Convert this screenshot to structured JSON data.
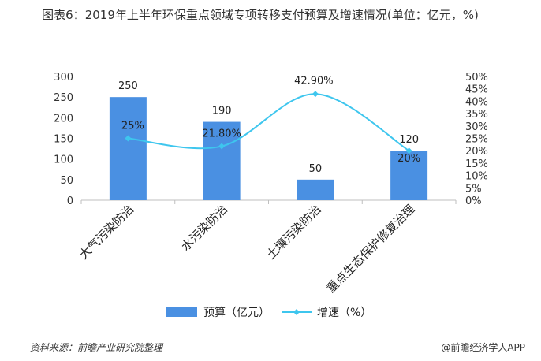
{
  "title": "图表6：2019年上半年环保重点领域专项转移支付预算及增速情况(单位：亿元，%)",
  "source": "资料来源：前瞻产业研究院整理",
  "brand": "@前瞻经济学人APP",
  "chart_data": {
    "type": "bar",
    "categories": [
      "大气污染防治",
      "水污染防治",
      "土壤污染防治",
      "重点生态保护修复治理"
    ],
    "series": [
      {
        "name": "预算（亿元）",
        "type": "bar",
        "axis": "left",
        "values": [
          250,
          190,
          50,
          120
        ],
        "labels": [
          "250",
          "190",
          "50",
          "120"
        ],
        "color": "#4a90e2"
      },
      {
        "name": "增速（%）",
        "type": "line",
        "axis": "right",
        "values": [
          25,
          21.8,
          42.9,
          20
        ],
        "labels": [
          "25%",
          "21.80%",
          "42.90%",
          "20%"
        ],
        "color": "#3ec6ee"
      }
    ],
    "ylim_left": [
      0,
      300
    ],
    "yticks_left": [
      "0",
      "50",
      "100",
      "150",
      "200",
      "250",
      "300"
    ],
    "ylim_right": [
      0,
      50
    ],
    "yticks_right": [
      "0%",
      "5%",
      "10%",
      "15%",
      "20%",
      "25%",
      "30%",
      "35%",
      "40%",
      "45%",
      "50%"
    ],
    "grid": false,
    "legend_position": "bottom"
  }
}
